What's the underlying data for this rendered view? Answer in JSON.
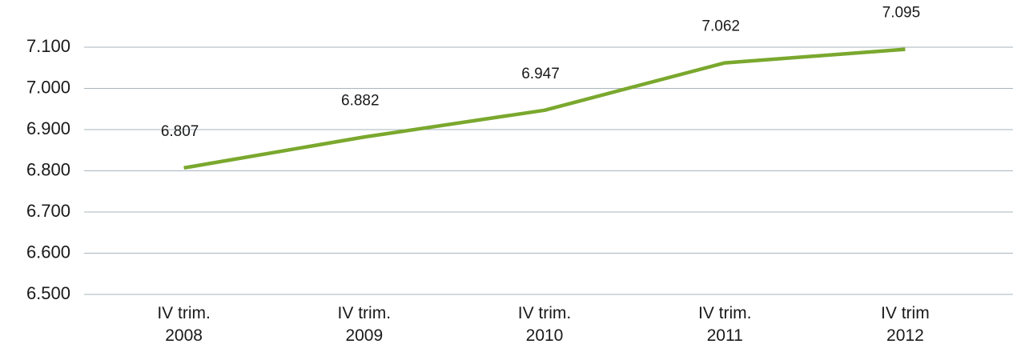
{
  "chart_data": {
    "type": "line",
    "categories": [
      "IV trim.\n2008",
      "IV trim.\n2009",
      "IV trim.\n2010",
      "IV trim.\n2011",
      "IV trim\n2012"
    ],
    "series": [
      {
        "color": "#7aa82e",
        "values": [
          6807,
          6882,
          6947,
          7062,
          7095
        ],
        "value_labels": [
          "6.807",
          "6.882",
          "6.947",
          "7.062",
          "7.095"
        ]
      }
    ],
    "ylim": [
      6500,
      7100
    ],
    "yticks": [
      {
        "value": 6500,
        "label": "6.500"
      },
      {
        "value": 6600,
        "label": "6.600"
      },
      {
        "value": 6700,
        "label": "6.700"
      },
      {
        "value": 6800,
        "label": "6.800"
      },
      {
        "value": 6900,
        "label": "6.900"
      },
      {
        "value": 7000,
        "label": "7.000"
      },
      {
        "value": 7100,
        "label": "7.100"
      }
    ],
    "grid": true
  }
}
